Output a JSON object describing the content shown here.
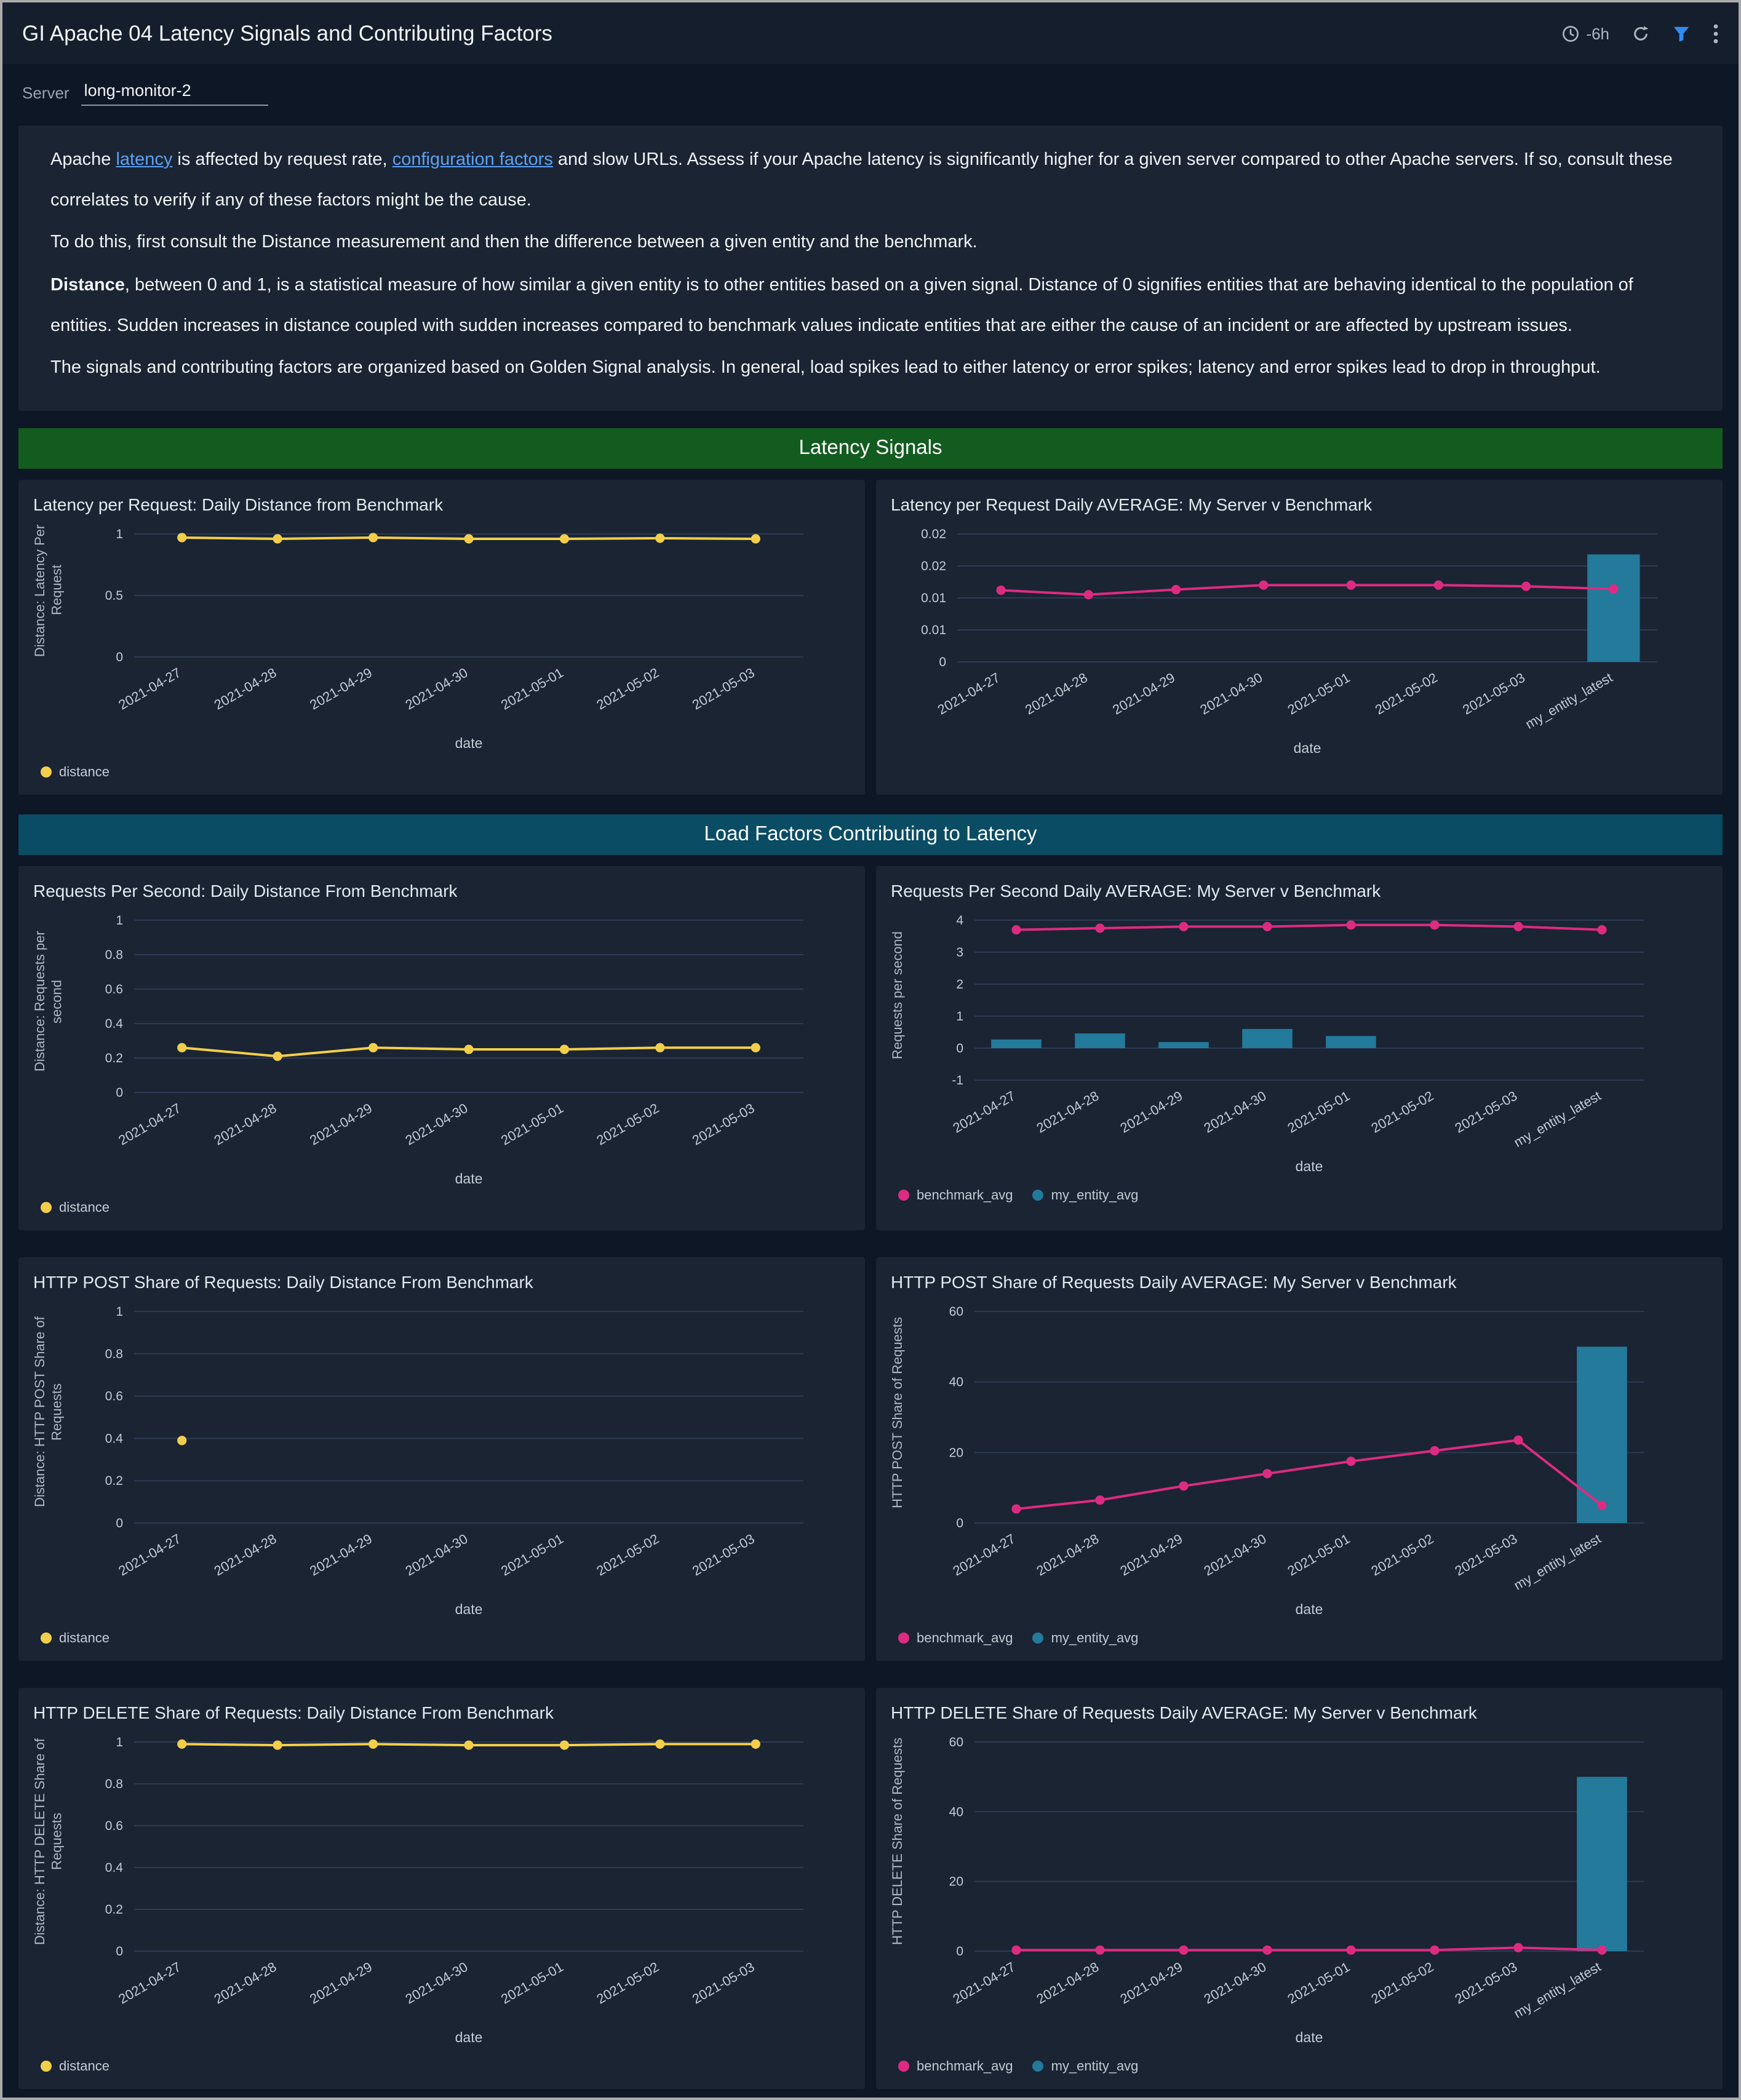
{
  "header": {
    "title": "GI Apache 04 Latency Signals and Contributing Factors",
    "time_range": "-6h"
  },
  "filters": {
    "server_label": "Server",
    "server_value": "long-monitor-2"
  },
  "description": {
    "paragraphs": [
      {
        "segments": [
          {
            "text": "Apache "
          },
          {
            "text": "latency",
            "style": "link"
          },
          {
            "text": " is affected by request rate, "
          },
          {
            "text": "configuration factors",
            "style": "link"
          },
          {
            "text": " and slow URLs. Assess if your Apache latency is significantly higher for a given server compared to other Apache servers. If so, consult these correlates to verify if any of these factors might be the cause."
          }
        ]
      },
      {
        "segments": [
          {
            "text": "To do this, first consult the Distance measurement and then the difference between a given entity and the benchmark."
          }
        ]
      },
      {
        "segments": [
          {
            "text": "Distance",
            "style": "bold"
          },
          {
            "text": ", between 0 and 1, is a statistical measure of how similar a given entity is to other entities based on a given signal. Distance of 0 signifies entities that are behaving identical to the population of entities. Sudden increases in distance coupled with sudden increases compared to benchmark values indicate entities that are either the cause of an incident or are affected by upstream issues."
          }
        ]
      },
      {
        "segments": [
          {
            "text": "The signals and contributing factors are organized based on Golden Signal analysis. In general, load spikes lead to either latency or error spikes; latency and error spikes lead to drop in throughput."
          }
        ]
      }
    ]
  },
  "sections": [
    {
      "title": "Latency Signals",
      "color": "#135c20"
    },
    {
      "title": "Load Factors Contributing to Latency",
      "color": "#0a4c63"
    }
  ],
  "colors": {
    "distance_line": "#f2ce4a",
    "benchmark_line": "#dd2b82",
    "entity_bar": "#237a9b",
    "link": "#5ba2f4"
  },
  "chart_data": [
    {
      "type": "line",
      "title": "Latency per Request: Daily Distance from Benchmark",
      "ylabel": "Distance: Latency Per Request",
      "xlabel": "date",
      "categories": [
        "2021-04-27",
        "2021-04-28",
        "2021-04-29",
        "2021-04-30",
        "2021-05-01",
        "2021-05-02",
        "2021-05-03"
      ],
      "ylim": [
        0,
        1
      ],
      "yticks": [
        {
          "v": 0,
          "label": "0"
        },
        {
          "v": 0.5,
          "label": "0.5"
        },
        {
          "v": 1,
          "label": "1"
        }
      ],
      "series": [
        {
          "name": "distance",
          "type": "line",
          "color": "#f2ce4a",
          "values": [
            0.97,
            0.96,
            0.97,
            0.96,
            0.96,
            0.965,
            0.96
          ]
        }
      ],
      "legend": [
        {
          "label": "distance",
          "color": "#f2ce4a"
        }
      ]
    },
    {
      "type": "line-bar",
      "title": "Latency per Request Daily AVERAGE: My Server v Benchmark",
      "ylabel": "",
      "xlabel": "date",
      "categories": [
        "2021-04-27",
        "2021-04-28",
        "2021-04-29",
        "2021-04-30",
        "2021-05-01",
        "2021-05-02",
        "2021-05-03",
        "my_entity_latest"
      ],
      "ylim": [
        0,
        0.02
      ],
      "yticks": [
        {
          "v": 0,
          "label": "0"
        },
        {
          "v": 0.005,
          "label": "0.01"
        },
        {
          "v": 0.01,
          "label": "0.01"
        },
        {
          "v": 0.015,
          "label": "0.02"
        },
        {
          "v": 0.02,
          "label": "0.02"
        }
      ],
      "series": [
        {
          "name": "my_entity_avg",
          "type": "bar",
          "color": "#237a9b",
          "values": [
            null,
            null,
            null,
            null,
            null,
            null,
            null,
            0.0168
          ]
        },
        {
          "name": "benchmark_avg",
          "type": "line",
          "color": "#dd2b82",
          "values": [
            0.0112,
            0.0105,
            0.0113,
            0.012,
            0.012,
            0.012,
            0.0118,
            0.0114
          ]
        }
      ],
      "legend": []
    },
    {
      "type": "line",
      "title": "Requests Per Second: Daily Distance From Benchmark",
      "ylabel": "Distance: Requests per second",
      "xlabel": "date",
      "categories": [
        "2021-04-27",
        "2021-04-28",
        "2021-04-29",
        "2021-04-30",
        "2021-05-01",
        "2021-05-02",
        "2021-05-03"
      ],
      "ylim": [
        0,
        1
      ],
      "yticks": [
        {
          "v": 0,
          "label": "0"
        },
        {
          "v": 0.2,
          "label": "0.2"
        },
        {
          "v": 0.4,
          "label": "0.4"
        },
        {
          "v": 0.6,
          "label": "0.6"
        },
        {
          "v": 0.8,
          "label": "0.8"
        },
        {
          "v": 1,
          "label": "1"
        }
      ],
      "series": [
        {
          "name": "distance",
          "type": "line",
          "color": "#f2ce4a",
          "values": [
            0.26,
            0.21,
            0.26,
            0.25,
            0.25,
            0.26,
            0.26
          ]
        }
      ],
      "legend": [
        {
          "label": "distance",
          "color": "#f2ce4a"
        }
      ]
    },
    {
      "type": "line-bar",
      "title": "Requests Per Second Daily AVERAGE: My Server v Benchmark",
      "ylabel": "Requests per second",
      "xlabel": "date",
      "categories": [
        "2021-04-27",
        "2021-04-28",
        "2021-04-29",
        "2021-04-30",
        "2021-05-01",
        "2021-05-02",
        "2021-05-03",
        "my_entity_latest"
      ],
      "ylim": [
        -1,
        4
      ],
      "yticks": [
        {
          "v": -1,
          "label": "-1"
        },
        {
          "v": 0,
          "label": "0"
        },
        {
          "v": 1,
          "label": "1"
        },
        {
          "v": 2,
          "label": "2"
        },
        {
          "v": 3,
          "label": "3"
        },
        {
          "v": 4,
          "label": "4"
        }
      ],
      "series": [
        {
          "name": "my_entity_avg",
          "type": "bar",
          "color": "#237a9b",
          "values": [
            0.27,
            0.46,
            0.19,
            0.6,
            0.38,
            null,
            null,
            null
          ]
        },
        {
          "name": "benchmark_avg",
          "type": "line",
          "color": "#dd2b82",
          "values": [
            3.7,
            3.75,
            3.8,
            3.8,
            3.85,
            3.85,
            3.8,
            3.7
          ]
        }
      ],
      "legend": [
        {
          "label": "benchmark_avg",
          "color": "#dd2b82"
        },
        {
          "label": "my_entity_avg",
          "color": "#237a9b"
        }
      ]
    },
    {
      "type": "line",
      "title": "HTTP POST Share of Requests: Daily Distance From Benchmark",
      "ylabel": "Distance: HTTP POST Share of Requests",
      "xlabel": "date",
      "categories": [
        "2021-04-27",
        "2021-04-28",
        "2021-04-29",
        "2021-04-30",
        "2021-05-01",
        "2021-05-02",
        "2021-05-03"
      ],
      "ylim": [
        0,
        1
      ],
      "yticks": [
        {
          "v": 0,
          "label": "0"
        },
        {
          "v": 0.2,
          "label": "0.2"
        },
        {
          "v": 0.4,
          "label": "0.4"
        },
        {
          "v": 0.6,
          "label": "0.6"
        },
        {
          "v": 0.8,
          "label": "0.8"
        },
        {
          "v": 1,
          "label": "1"
        }
      ],
      "series": [
        {
          "name": "distance",
          "type": "line",
          "color": "#f2ce4a",
          "values": [
            0.39,
            null,
            null,
            null,
            null,
            null,
            null
          ]
        }
      ],
      "legend": [
        {
          "label": "distance",
          "color": "#f2ce4a"
        }
      ]
    },
    {
      "type": "line-bar",
      "title": "HTTP POST Share of Requests Daily AVERAGE: My Server v Benchmark",
      "ylabel": "HTTP POST Share of Requests",
      "xlabel": "date",
      "categories": [
        "2021-04-27",
        "2021-04-28",
        "2021-04-29",
        "2021-04-30",
        "2021-05-01",
        "2021-05-02",
        "2021-05-03",
        "my_entity_latest"
      ],
      "ylim": [
        0,
        60
      ],
      "yticks": [
        {
          "v": 0,
          "label": "0"
        },
        {
          "v": 20,
          "label": "20"
        },
        {
          "v": 40,
          "label": "40"
        },
        {
          "v": 60,
          "label": "60"
        }
      ],
      "series": [
        {
          "name": "my_entity_avg",
          "type": "bar",
          "color": "#237a9b",
          "values": [
            null,
            null,
            null,
            null,
            null,
            null,
            null,
            50
          ]
        },
        {
          "name": "benchmark_avg",
          "type": "line",
          "color": "#dd2b82",
          "values": [
            4,
            6.5,
            10.5,
            14,
            17.5,
            20.5,
            23.5,
            5
          ]
        }
      ],
      "legend": [
        {
          "label": "benchmark_avg",
          "color": "#dd2b82"
        },
        {
          "label": "my_entity_avg",
          "color": "#237a9b"
        }
      ]
    },
    {
      "type": "line",
      "title": "HTTP DELETE Share of Requests: Daily Distance From Benchmark",
      "ylabel": "Distance: HTTP DELETE Share of Requests",
      "xlabel": "date",
      "categories": [
        "2021-04-27",
        "2021-04-28",
        "2021-04-29",
        "2021-04-30",
        "2021-05-01",
        "2021-05-02",
        "2021-05-03"
      ],
      "ylim": [
        0,
        1
      ],
      "yticks": [
        {
          "v": 0,
          "label": "0"
        },
        {
          "v": 0.2,
          "label": "0.2"
        },
        {
          "v": 0.4,
          "label": "0.4"
        },
        {
          "v": 0.6,
          "label": "0.6"
        },
        {
          "v": 0.8,
          "label": "0.8"
        },
        {
          "v": 1,
          "label": "1"
        }
      ],
      "series": [
        {
          "name": "distance",
          "type": "line",
          "color": "#f2ce4a",
          "values": [
            0.99,
            0.985,
            0.99,
            0.985,
            0.985,
            0.99,
            0.99
          ]
        }
      ],
      "legend": [
        {
          "label": "distance",
          "color": "#f2ce4a"
        }
      ]
    },
    {
      "type": "line-bar",
      "title": "HTTP DELETE Share of Requests Daily AVERAGE: My Server v Benchmark",
      "ylabel": "HTTP DELETE Share of Requests",
      "xlabel": "date",
      "categories": [
        "2021-04-27",
        "2021-04-28",
        "2021-04-29",
        "2021-04-30",
        "2021-05-01",
        "2021-05-02",
        "2021-05-03",
        "my_entity_latest"
      ],
      "ylim": [
        0,
        60
      ],
      "yticks": [
        {
          "v": 0,
          "label": "0"
        },
        {
          "v": 20,
          "label": "20"
        },
        {
          "v": 40,
          "label": "40"
        },
        {
          "v": 60,
          "label": "60"
        }
      ],
      "series": [
        {
          "name": "my_entity_avg",
          "type": "bar",
          "color": "#237a9b",
          "values": [
            null,
            null,
            null,
            null,
            null,
            null,
            null,
            50
          ]
        },
        {
          "name": "benchmark_avg",
          "type": "line",
          "color": "#dd2b82",
          "values": [
            0.3,
            0.3,
            0.3,
            0.3,
            0.3,
            0.3,
            1,
            0.3
          ]
        }
      ],
      "legend": [
        {
          "label": "benchmark_avg",
          "color": "#dd2b82"
        },
        {
          "label": "my_entity_avg",
          "color": "#237a9b"
        }
      ]
    }
  ]
}
